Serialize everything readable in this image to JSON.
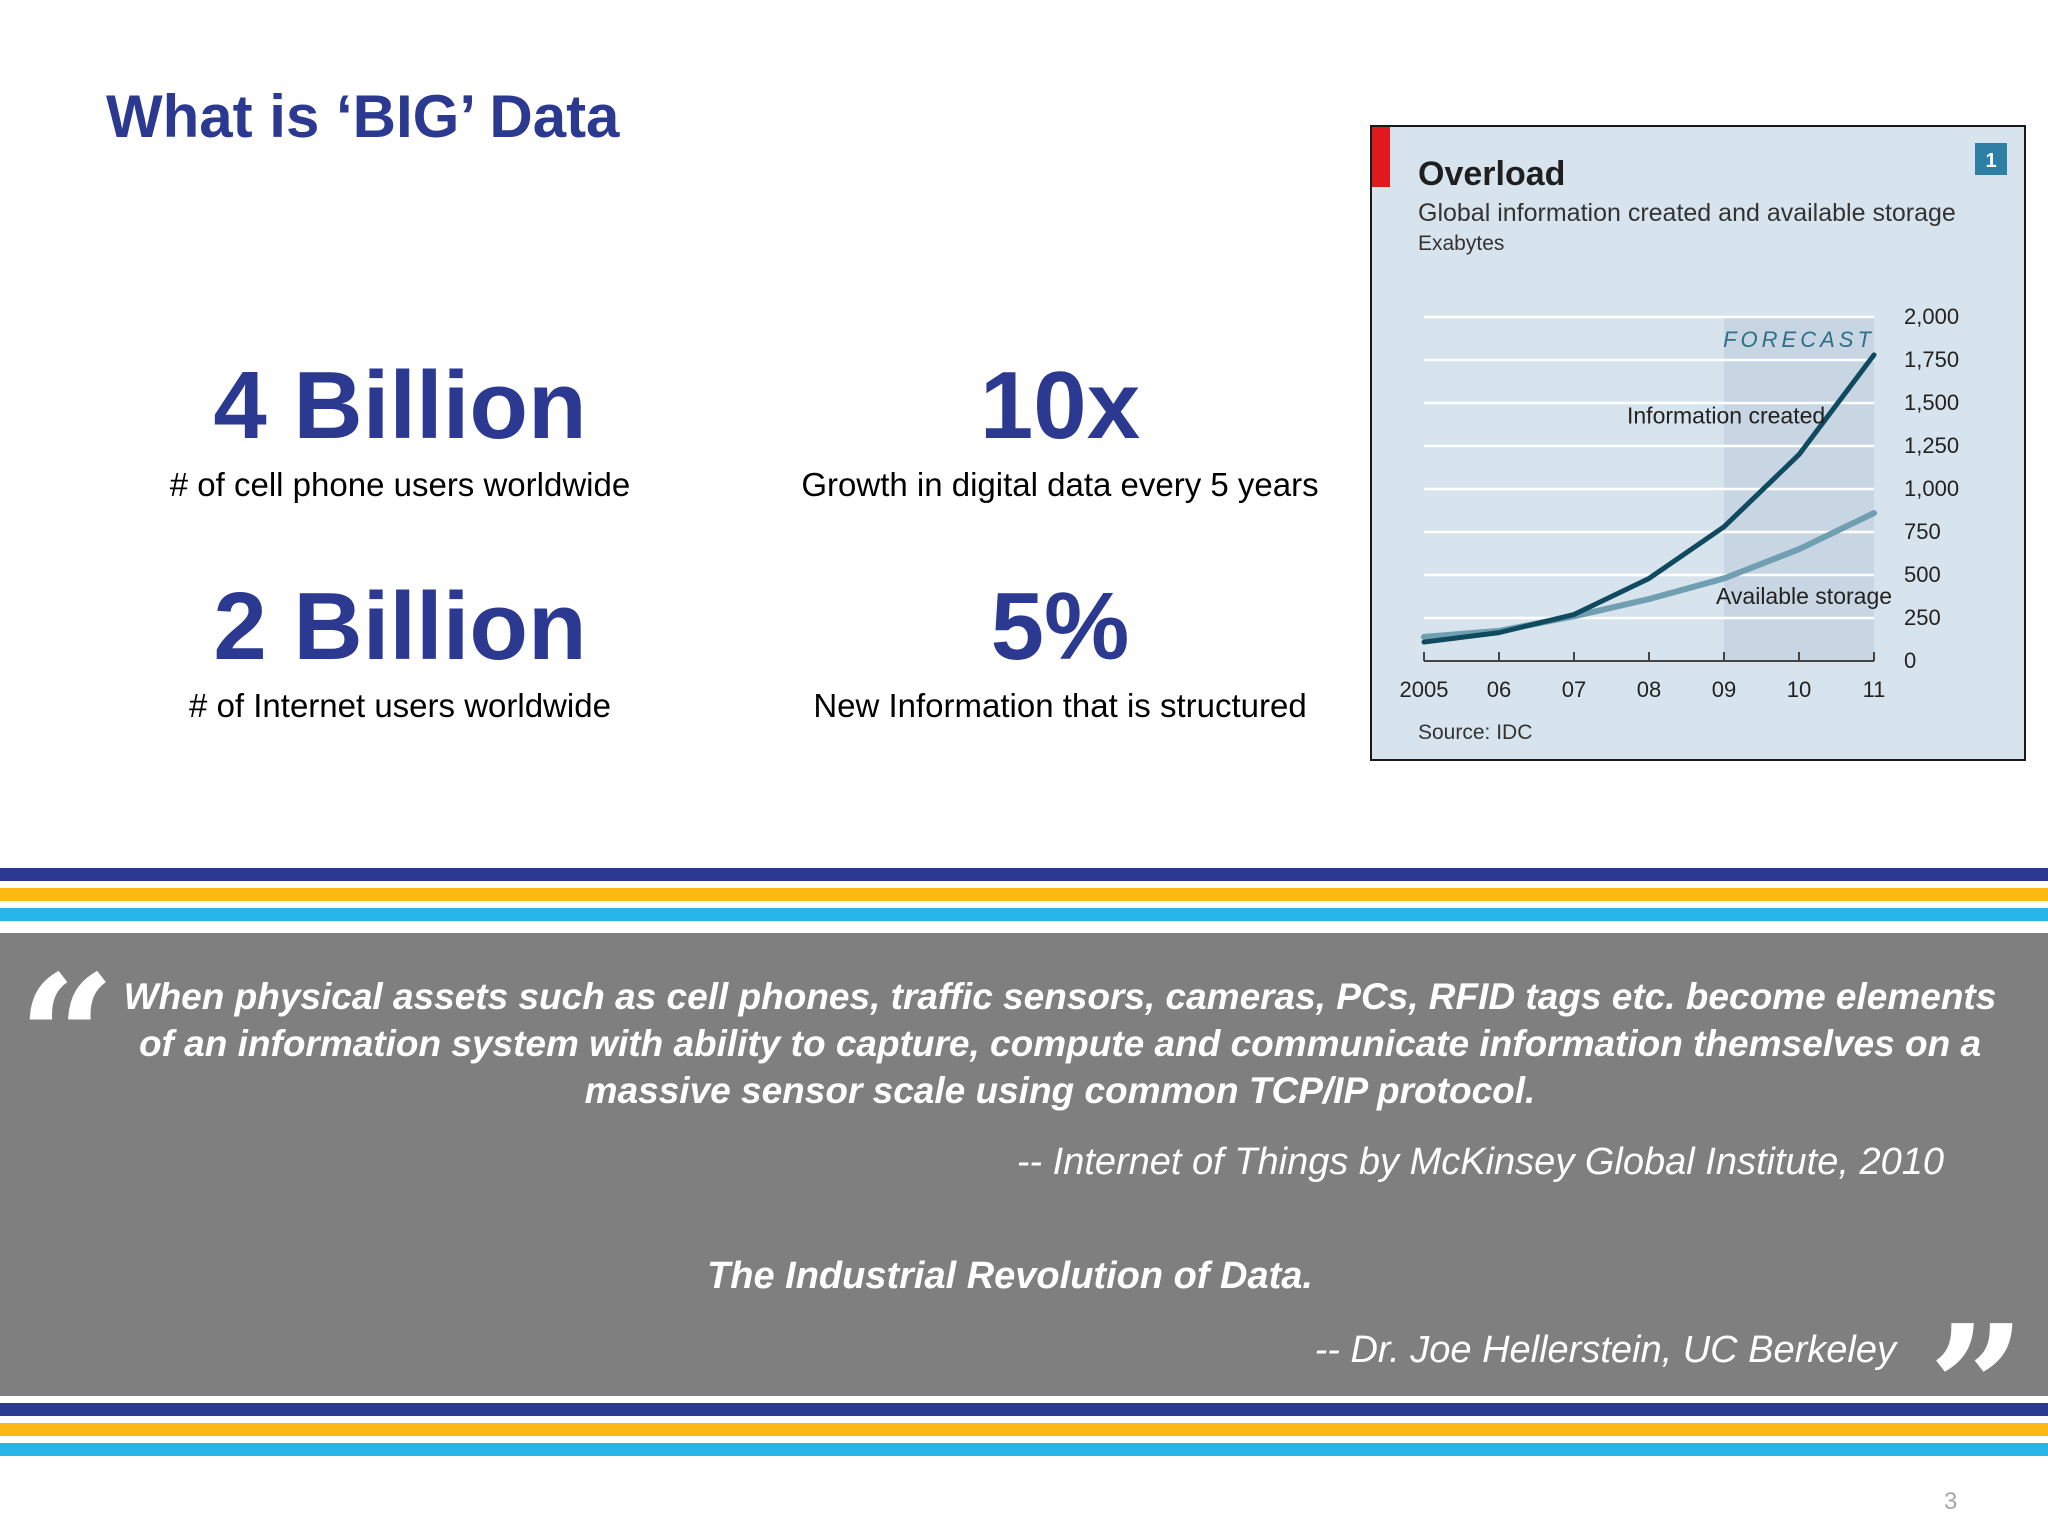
{
  "slide": {
    "title": "What is ‘BIG’ Data",
    "page_number": "3"
  },
  "stats": [
    {
      "value": "4 Billion",
      "caption": "# of cell phone users worldwide"
    },
    {
      "value": "10x",
      "caption": "Growth in digital data every 5 years"
    },
    {
      "value": "2 Billion",
      "caption": "# of Internet users worldwide"
    },
    {
      "value": "5%",
      "caption": "New Information that is structured"
    }
  ],
  "colors": {
    "title_blue": "#2b3990",
    "stripe_navy": "#2b3990",
    "stripe_gold": "#fdb913",
    "stripe_sky": "#27b4e7",
    "quote_panel": "#7f7f7f",
    "chart_bg": "#d7e4ed",
    "forecast_band": "#c7d6e2",
    "series_created": "#0f4a5e",
    "series_storage": "#6f9fb1",
    "chart_accent_red": "#e0191f"
  },
  "quote": {
    "text": "When physical assets such as cell phones, traffic sensors, cameras, PCs, RFID tags etc. become elements of an information system with ability to capture, compute and communicate information themselves on a massive sensor scale using common TCP/IP protocol.",
    "source": "-- Internet of Things by McKinsey Global Institute, 2010",
    "text_2": "The Industrial Revolution of Data.",
    "source_2": "-- Dr. Joe Hellerstein, UC Berkeley",
    "open_mark": "“",
    "close_mark": "”"
  },
  "chart_data": {
    "type": "line",
    "title": "Overload",
    "subtitle": "Global information created and available storage",
    "ylabel": "Exabytes",
    "badge": "1",
    "source": "Source: IDC",
    "forecast_label": "FORECAST",
    "forecast_range": [
      "09",
      "11"
    ],
    "ylim": [
      0,
      2000
    ],
    "y_ticks": [
      0,
      250,
      500,
      750,
      1000,
      1250,
      1500,
      1750,
      2000
    ],
    "y_tick_labels": [
      "0",
      "250",
      "500",
      "750",
      "1,000",
      "1,250",
      "1,500",
      "1,750",
      "2,000"
    ],
    "x": [
      "2005",
      "06",
      "07",
      "08",
      "09",
      "10",
      "11"
    ],
    "grid": true,
    "series": [
      {
        "name": "Information created",
        "values": [
          110,
          165,
          270,
          480,
          780,
          1200,
          1780
        ],
        "color": "#0f4a5e"
      },
      {
        "name": "Available storage",
        "values": [
          140,
          175,
          260,
          360,
          480,
          650,
          860
        ],
        "color": "#6f9fb1"
      }
    ]
  }
}
